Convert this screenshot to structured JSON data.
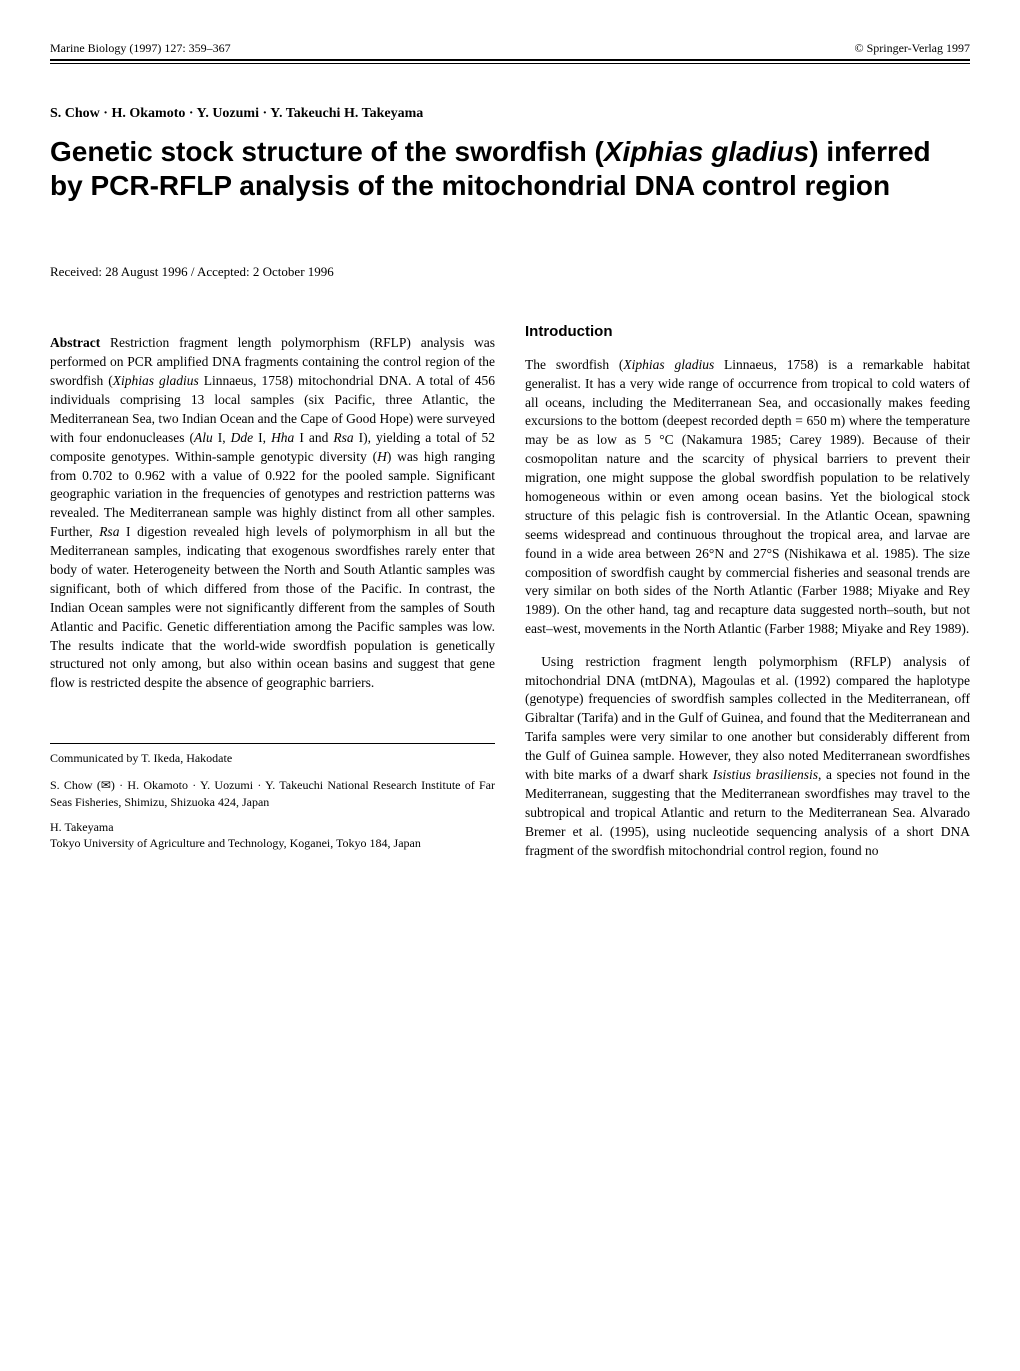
{
  "header": {
    "journal": "Marine Biology (1997) 127: 359–367",
    "copyright": "© Springer-Verlag 1997"
  },
  "authors": "S. Chow · H. Okamoto · Y. Uozumi · Y. Takeuchi H. Takeyama",
  "title_prefix": "Genetic stock structure of the swordfish (",
  "title_species": "Xiphias gladius",
  "title_suffix": ") inferred by PCR-RFLP analysis of the mitochondrial DNA control region",
  "received": "Received: 28 August 1996 / Accepted: 2 October 1996",
  "abstract": {
    "label": "Abstract",
    "text_1": " Restriction fragment length polymorphism (RFLP) analysis was performed on PCR amplified DNA fragments containing the control region of the swordfish (",
    "species_1": "Xiphias gladius",
    "text_2": " Linnaeus, 1758) mitochondrial DNA. A total of 456 individuals comprising 13 local samples (six Pacific, three Atlantic, the Mediterranean Sea, two Indian Ocean and the Cape of Good Hope) were surveyed with four endonucleases (",
    "enzyme_1": "Alu",
    "text_3": " I, ",
    "enzyme_2": "Dde",
    "text_4": " I, ",
    "enzyme_3": "Hha",
    "text_5": " I and ",
    "enzyme_4": "Rsa",
    "text_6": " I), yielding a total of 52 composite genotypes. Within-sample genotypic diversity (",
    "symbol_H": "H",
    "text_7": ") was high ranging from 0.702 to 0.962 with a value of 0.922 for the pooled sample. Significant geographic variation in the frequencies of genotypes and restriction patterns was revealed. The Mediterranean sample was highly distinct from all other samples. Further, ",
    "enzyme_5": "Rsa",
    "text_8": " I digestion revealed high levels of polymorphism in all but the Mediterranean samples, indicating that exogenous swordfishes rarely enter that body of water. Heterogeneity between the North and South Atlantic samples was significant, both of which differed from those of the Pacific. In contrast, the Indian Ocean samples were not significantly different from the samples of South Atlantic and Pacific. Genetic differentiation among the Pacific samples was low. The results indicate that the world-wide swordfish population is genetically structured not only among, but also within ocean basins and suggest that gene flow is restricted despite the absence of geographic barriers."
  },
  "intro": {
    "heading": "Introduction",
    "p1_a": "The swordfish (",
    "p1_species": "Xiphias gladius",
    "p1_b": " Linnaeus, 1758) is a remarkable habitat generalist. It has a very wide range of occurrence from tropical to cold waters of all oceans, including the Mediterranean Sea, and occasionally makes feeding excursions to the bottom (deepest recorded depth = 650 m) where the temperature may be as low as 5 °C (Nakamura 1985; Carey 1989). Because of their cosmopolitan nature and the scarcity of physical barriers to prevent their migration, one might suppose the global swordfish population to be relatively homogeneous within or even among ocean basins. Yet the biological stock structure of this pelagic fish is controversial. In the Atlantic Ocean, spawning seems widespread and continuous throughout the tropical area, and larvae are found in a wide area between 26°N and 27°S (Nishikawa et al. 1985). The size composition of swordfish caught by commercial fisheries and seasonal trends are very similar on both sides of the North Atlantic (Farber 1988; Miyake and Rey 1989). On the other hand, tag and recapture data suggested north–south, but not east–west, movements in the North Atlantic (Farber 1988; Miyake and Rey 1989).",
    "p2_a": "Using restriction fragment length polymorphism (RFLP) analysis of mitochondrial DNA (mtDNA), Magoulas et al. (1992) compared the haplotype (genotype) frequencies of swordfish samples collected in the Mediterranean, off Gibraltar (Tarifa) and in the Gulf of Guinea, and found that the Mediterranean and Tarifa samples were very similar to one another but considerably different from the Gulf of Guinea sample. However, they also noted Mediterranean swordfishes with bite marks of a dwarf shark ",
    "p2_species": "Isistius brasiliensis",
    "p2_b": ", a species not found in the Mediterranean, suggesting that the Mediterranean swordfishes may travel to the subtropical and tropical Atlantic and return to the Mediterranean Sea. Alvarado Bremer et al. (1995), using nucleotide sequencing analysis of a short DNA fragment of the swordfish mitochondrial control region, found no"
  },
  "footer": {
    "communicated": "Communicated by T. Ikeda, Hakodate",
    "aff1": "S. Chow (✉) · H. Okamoto · Y. Uozumi · Y. Takeuchi National Research Institute of Far Seas Fisheries, Shimizu, Shizuoka 424, Japan",
    "aff2_name": "H. Takeyama",
    "aff2_addr": "Tokyo University of Agriculture and Technology, Koganei, Tokyo 184, Japan"
  }
}
